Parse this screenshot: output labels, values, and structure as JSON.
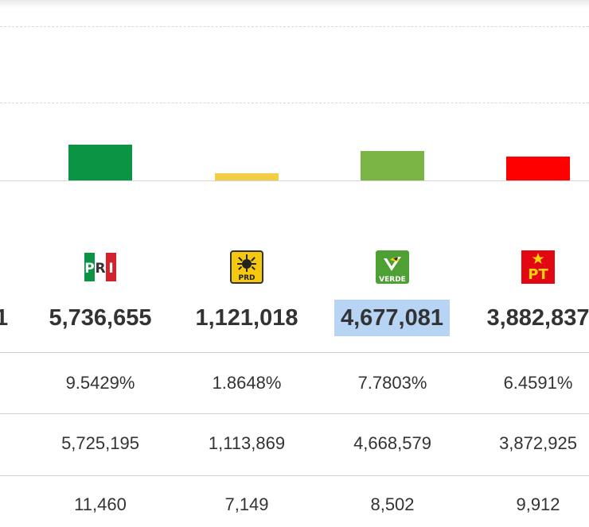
{
  "chart_data": {
    "type": "bar",
    "categories": [
      "PRI",
      "PRD",
      "VERDE",
      "PT"
    ],
    "values": [
      5736655,
      1121018,
      4677081,
      3882837
    ],
    "colors": [
      "#0a9443",
      "#f3cd45",
      "#79b445",
      "#ff0000"
    ],
    "grid": true
  },
  "parties": [
    {
      "key": "pri",
      "logo": "PRI",
      "votes": "5,736,655",
      "percent": "9.5429%",
      "row2": "5,725,195",
      "row3": "11,460"
    },
    {
      "key": "prd",
      "logo": "PRD",
      "votes": "1,121,018",
      "percent": "1.8648%",
      "row2": "1,113,869",
      "row3": "7,149"
    },
    {
      "key": "verde",
      "logo": "VERDE",
      "votes": "4,677,081",
      "percent": "7.7803%",
      "row2": "4,668,579",
      "row3": "8,502"
    },
    {
      "key": "pt",
      "logo": "PT",
      "votes": "3,882,837",
      "percent": "6.4591%",
      "row2": "3,872,925",
      "row3": "9,912"
    }
  ],
  "partial_column": {
    "votes": "1"
  },
  "icons": {
    "pri": "pri-logo-icon",
    "prd": "prd-logo-icon",
    "verde": "verde-logo-icon",
    "pt": "pt-logo-icon"
  }
}
